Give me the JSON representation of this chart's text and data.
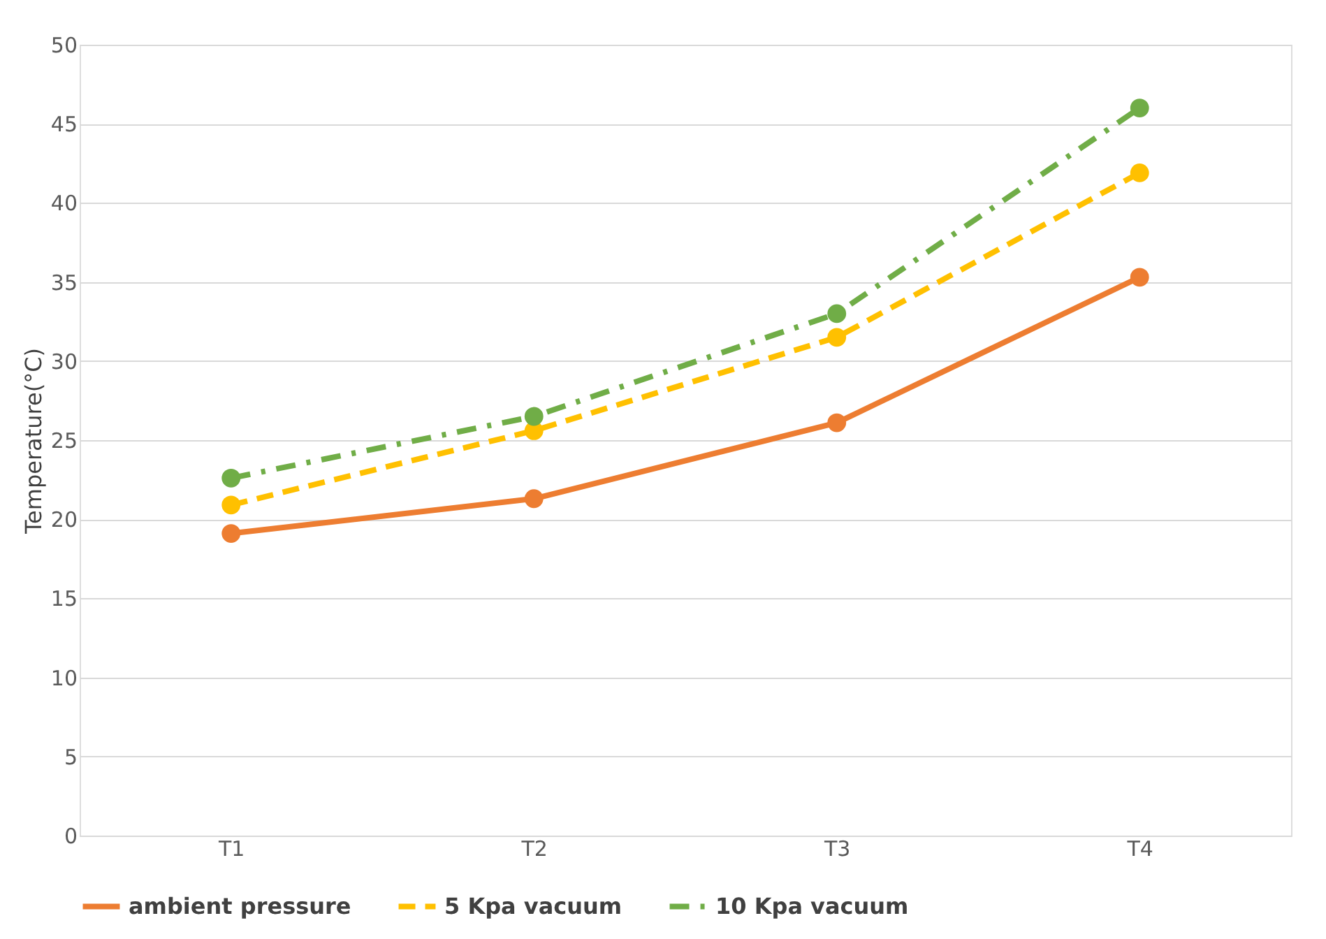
{
  "chart_data": {
    "type": "line",
    "ylabel": "Temperature(°C)",
    "categories": [
      "T1",
      "T2",
      "T3",
      "T4"
    ],
    "series": [
      {
        "name": "ambient pressure",
        "color": "#ed7d31",
        "values": [
          19.1,
          21.3,
          26.1,
          35.3
        ],
        "line_style": "solid"
      },
      {
        "name": "5 Kpa vacuum",
        "color": "#ffc000",
        "values": [
          20.9,
          25.6,
          31.5,
          41.9
        ],
        "line_style": "dashed"
      },
      {
        "name": "10 Kpa vacuum",
        "color": "#70ad47",
        "values": [
          22.6,
          26.5,
          33.0,
          46.0
        ],
        "line_style": "dashdot"
      }
    ],
    "ylim": [
      0,
      50
    ],
    "yticks": [
      0,
      5,
      10,
      15,
      20,
      25,
      30,
      35,
      40,
      45,
      50
    ],
    "grid": "y",
    "legend": "bottom",
    "marker": "circle"
  }
}
